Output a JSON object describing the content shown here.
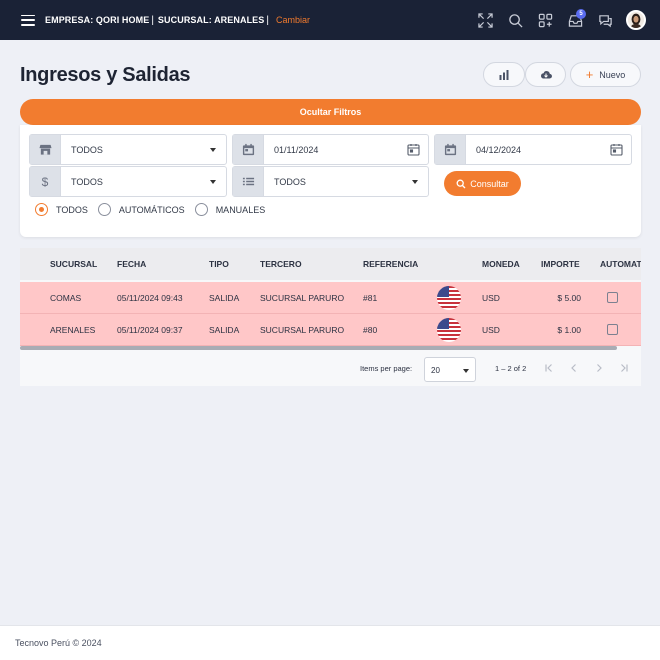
{
  "topbar": {
    "empresa": "EMPRESA: QORI HOME",
    "sucursal": "SUCURSAL: ARENALES",
    "separator": "|",
    "change_link": "Cambiar",
    "notifications_count": "5"
  },
  "page": {
    "title": "Ingresos y Salidas",
    "new_button": "Nuevo"
  },
  "filters": {
    "toggle_label": "Ocultar Filtros",
    "store_select": "TODOS",
    "date_from": "01/11/2024",
    "date_to": "04/12/2024",
    "currency_select": "TODOS",
    "type_select": "TODOS",
    "consult_button": "Consultar",
    "radios": [
      {
        "label": "TODOS",
        "checked": true
      },
      {
        "label": "AUTOMÁTICOS",
        "checked": false
      },
      {
        "label": "MANUALES",
        "checked": false
      }
    ]
  },
  "table": {
    "columns": [
      "SUCURSAL",
      "FECHA",
      "TIPO",
      "TERCERO",
      "REFERENCIA",
      "",
      "MONEDA",
      "IMPORTE",
      "AUTOMAT"
    ],
    "rows": [
      {
        "sucursal": "COMAS",
        "fecha": "05/11/2024 09:43",
        "tipo": "SALIDA",
        "tercero": "SUCURSAL PARURO",
        "referencia": "#81",
        "moneda": "USD",
        "importe": "$ 5.00",
        "automatico": false
      },
      {
        "sucursal": "ARENALES",
        "fecha": "05/11/2024 09:37",
        "tipo": "SALIDA",
        "tercero": "SUCURSAL PARURO",
        "referencia": "#80",
        "moneda": "USD",
        "importe": "$ 1.00",
        "automatico": false
      }
    ],
    "row_color": "#ffc7c8"
  },
  "paginator": {
    "items_per_page_label": "Items per page:",
    "page_size": "20",
    "range_label": "1 – 2 of 2"
  },
  "footer": {
    "copyright": "Tecnovo Perú © 2024"
  },
  "colors": {
    "accent": "#f27c2f",
    "topbar": "#1a2236",
    "badge": "#5a6cf0"
  }
}
